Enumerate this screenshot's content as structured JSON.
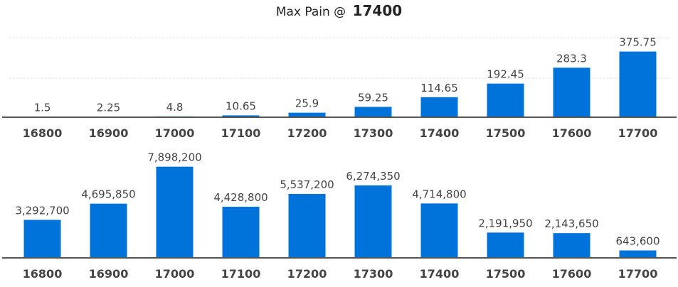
{
  "title": {
    "prefix": "Max Pain @",
    "value": "17400"
  },
  "colors": {
    "bar": "#0073db",
    "baseline": "#555555",
    "grid": "#d9d9d9"
  },
  "chart_data": [
    {
      "type": "bar",
      "categories": [
        "16800",
        "16900",
        "17000",
        "17100",
        "17200",
        "17300",
        "17400",
        "17500",
        "17600",
        "17700"
      ],
      "values": [
        1.5,
        2.25,
        4.8,
        10.65,
        25.9,
        59.25,
        114.65,
        192.45,
        283.3,
        375.75
      ],
      "labels": [
        "1.5",
        "2.25",
        "4.8",
        "10.65",
        "25.9",
        "59.25",
        "114.65",
        "192.45",
        "283.3",
        "375.75"
      ],
      "ylim": [
        0,
        500
      ],
      "grid": true
    },
    {
      "type": "bar",
      "categories": [
        "16800",
        "16900",
        "17000",
        "17100",
        "17200",
        "17300",
        "17400",
        "17500",
        "17600",
        "17700"
      ],
      "values": [
        3292700,
        4695850,
        7898200,
        4428800,
        5537200,
        6274350,
        4714800,
        2191950,
        2143650,
        643600
      ],
      "labels": [
        "3,292,700",
        "4,695,850",
        "7,898,200",
        "4,428,800",
        "5,537,200",
        "6,274,350",
        "4,714,800",
        "2,191,950",
        "2,143,650",
        "643,600"
      ],
      "ylim": [
        0,
        8000000
      ],
      "grid": false
    }
  ]
}
